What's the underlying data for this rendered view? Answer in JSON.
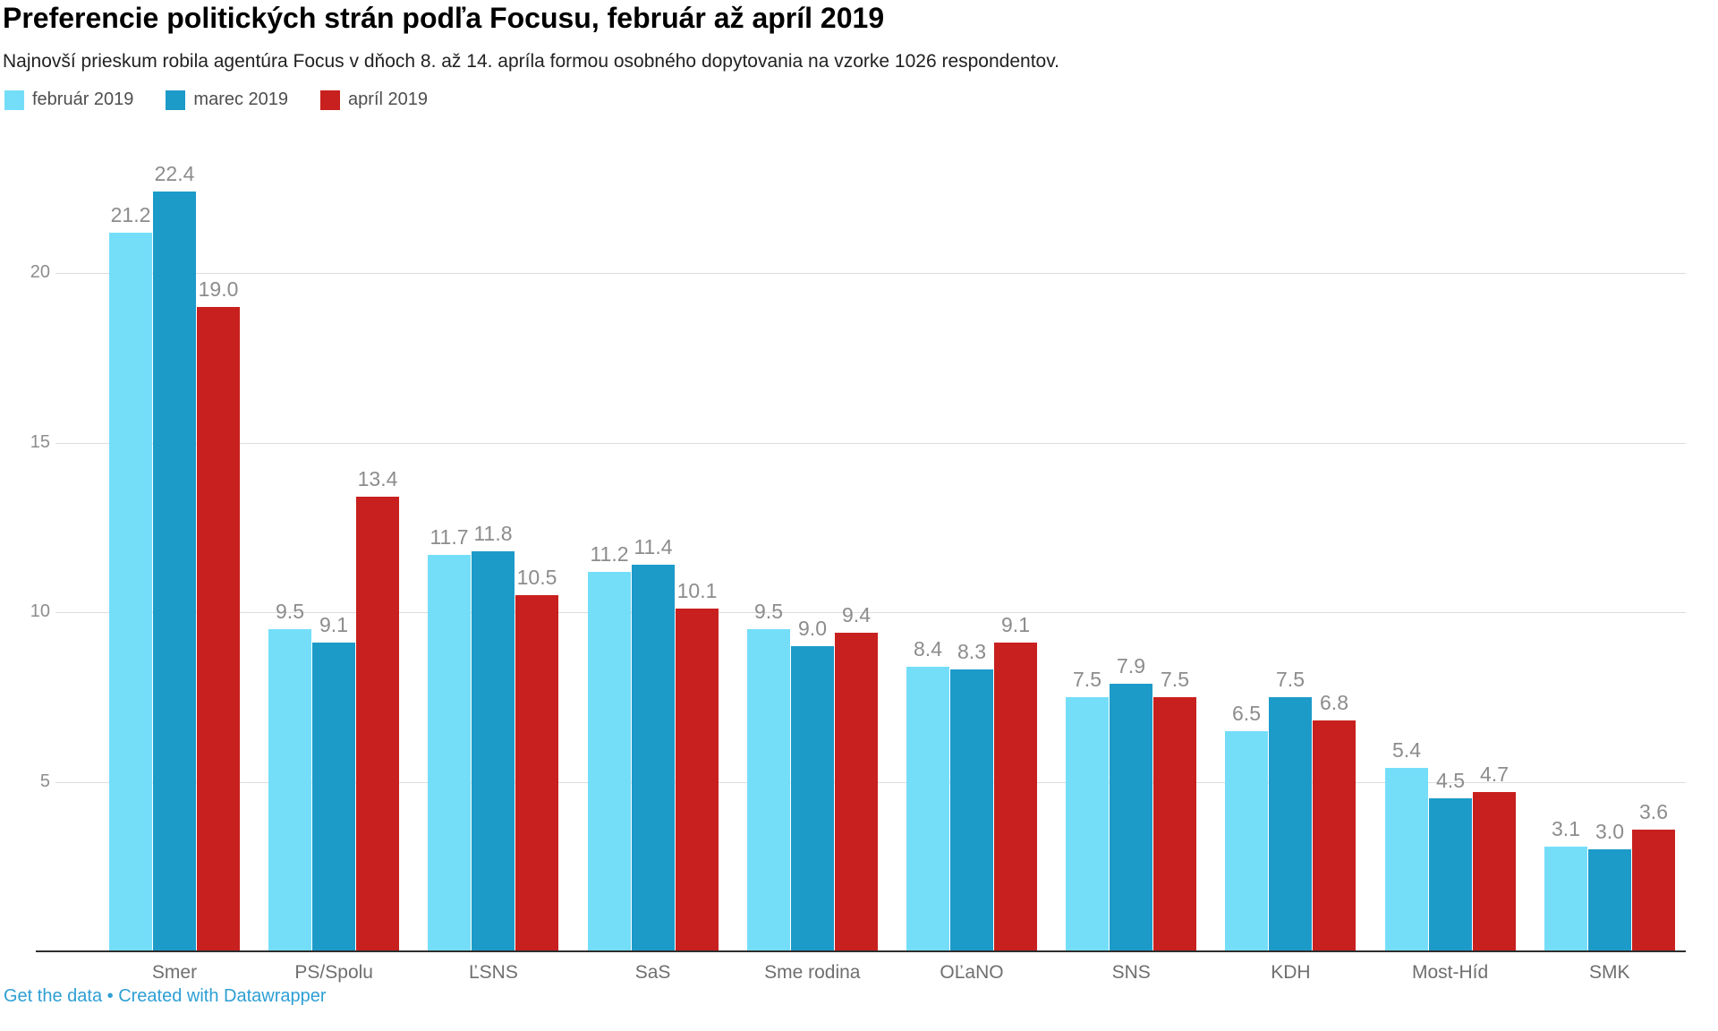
{
  "header": {
    "title": "Preferencie politických strán podľa Focusu, február až apríl 2019",
    "subtitle": "Najnovší prieskum robila agentúra Focus v dňoch 8. až 14. apríla formou osobného dopytovania na vzorke 1026 respondentov."
  },
  "colors": {
    "februar_series": "#74DEF9",
    "marec_series": "#1C9BC9",
    "april_series": "#C8201E",
    "gridline": "#DDDDDD",
    "baseline": "#2E2E2E",
    "link_blue": "#2E9FD4",
    "value_label_gray": "#8C8C8C",
    "category_label_gray": "#6F6F6F"
  },
  "chart_data": {
    "type": "bar",
    "title": "Preferencie politických strán podľa Focusu, február až apríl 2019",
    "subtitle": "Najnovší prieskum robila agentúra Focus v dňoch 8. až 14. apríla formou osobného dopytovania na vzorke 1026 respondentov.",
    "categories": [
      "Smer",
      "PS/Spolu",
      "ĽSNS",
      "SaS",
      "Sme rodina",
      "OĽaNO",
      "SNS",
      "KDH",
      "Most-Híd",
      "SMK"
    ],
    "series": [
      {
        "name": "február 2019",
        "color": "#74DEF9",
        "values": [
          21.2,
          9.5,
          11.7,
          11.2,
          9.5,
          8.4,
          7.5,
          6.5,
          5.4,
          3.1
        ]
      },
      {
        "name": "marec 2019",
        "color": "#1C9BC9",
        "values": [
          22.4,
          9.1,
          11.8,
          11.4,
          9.0,
          8.3,
          7.9,
          7.5,
          4.5,
          3.0
        ]
      },
      {
        "name": "apríl 2019",
        "color": "#C8201E",
        "values": [
          19.0,
          13.4,
          10.5,
          10.1,
          9.4,
          9.1,
          7.5,
          6.8,
          4.7,
          3.6
        ]
      }
    ],
    "xlabel": "",
    "ylabel": "",
    "yticks": [
      5,
      10,
      15,
      20
    ],
    "ylim": [
      0,
      24.4
    ],
    "grid": true,
    "value_labels": true,
    "legend_position": "top-left"
  },
  "footer": {
    "get_data": "Get the data",
    "separator": " • ",
    "credit": "Created with Datawrapper"
  }
}
